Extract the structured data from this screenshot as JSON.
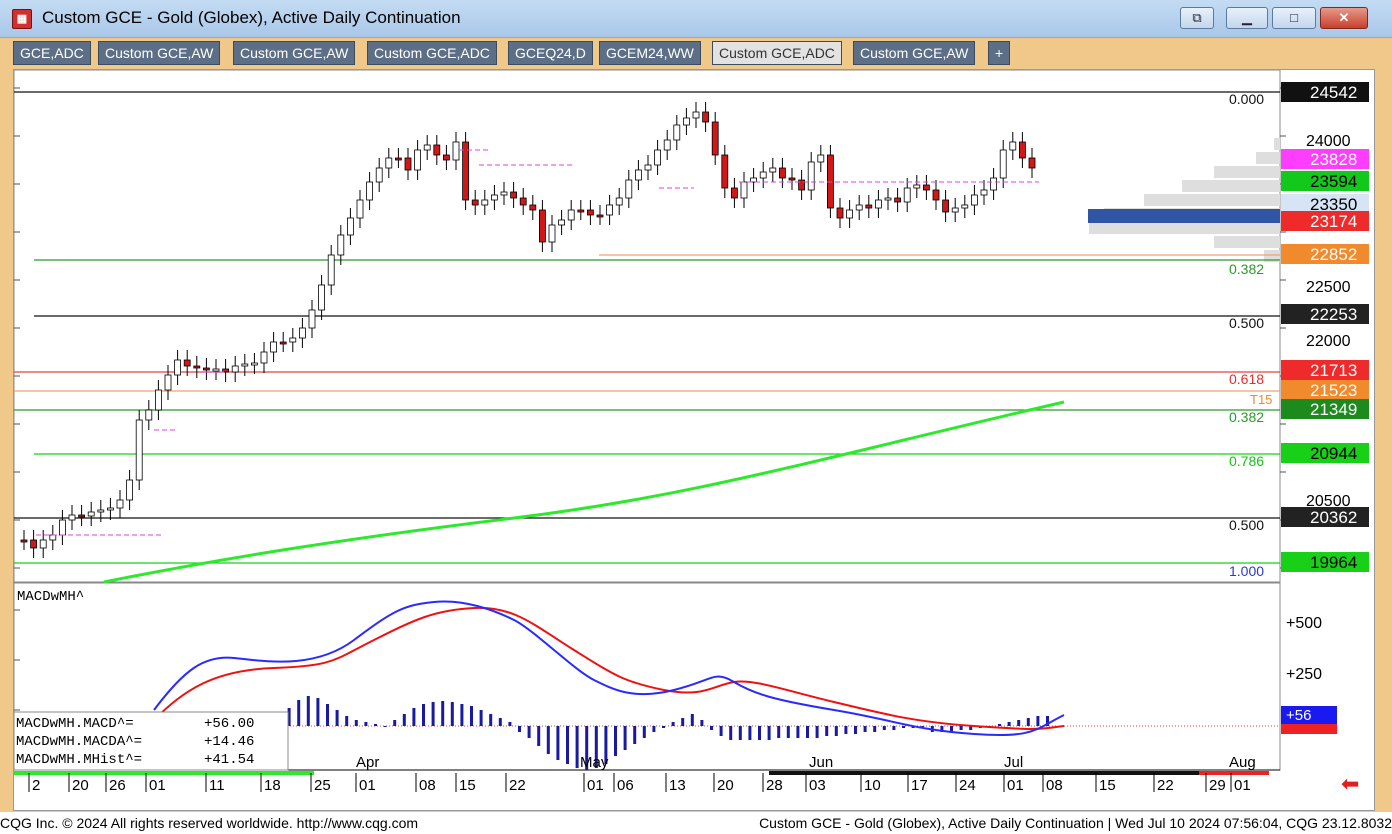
{
  "window": {
    "title": "Custom GCE - Gold (Globex), Active Daily Continuation",
    "app_icon": "cqg-chart-icon",
    "buttons": {
      "restore": "⧉",
      "minimize": "▁",
      "maximize": "□",
      "close": "✕"
    }
  },
  "tabs": [
    {
      "label": "GCE,ADC",
      "active": false
    },
    {
      "label": "Custom GCE,AW",
      "active": false
    },
    {
      "label": "Custom GCE,AW",
      "active": false
    },
    {
      "label": "Custom GCE,ADC",
      "active": false
    },
    {
      "label": "GCEQ24,D",
      "active": false
    },
    {
      "label": "GCEM24,WW",
      "active": false
    },
    {
      "label": "Custom GCE,ADC",
      "active": true
    },
    {
      "label": "Custom GCE,AW",
      "active": false
    },
    {
      "label": "+",
      "active": false
    }
  ],
  "price_scale": {
    "axis_labels": [
      "24000",
      "22500",
      "22000",
      "20500"
    ],
    "tags": [
      {
        "value": "24542",
        "bg": "#111111",
        "fg": "#ffffff"
      },
      {
        "value": "23828",
        "bg": "#ff3dff",
        "fg": "#ffffff"
      },
      {
        "value": "23594",
        "bg": "#12c81b",
        "fg": "#000000"
      },
      {
        "value": "23350",
        "bg": "#d6e4f5",
        "fg": "#000000"
      },
      {
        "value": "23174",
        "bg": "#ee2a2a",
        "fg": "#ffffff"
      },
      {
        "value": "22852",
        "bg": "#f08a2c",
        "fg": "#ffffff"
      },
      {
        "value": "22253",
        "bg": "#222222",
        "fg": "#ffffff"
      },
      {
        "value": "21713",
        "bg": "#ee2a2a",
        "fg": "#ffffff"
      },
      {
        "value": "21523",
        "bg": "#f08a2c",
        "fg": "#ffffff"
      },
      {
        "value": "21349",
        "bg": "#1d8a1d",
        "fg": "#ffffff"
      },
      {
        "value": "20944",
        "bg": "#17d017",
        "fg": "#000000"
      },
      {
        "value": "20362",
        "bg": "#222222",
        "fg": "#ffffff"
      },
      {
        "value": "19964",
        "bg": "#17d017",
        "fg": "#000000"
      }
    ]
  },
  "fib_labels": [
    {
      "text": "0.000",
      "color": "#111111"
    },
    {
      "text": "0.382",
      "color": "#2a9a2a"
    },
    {
      "text": "0.500",
      "color": "#111111"
    },
    {
      "text": "0.618",
      "color": "#e03030"
    },
    {
      "text": "T15",
      "color": "#f08a2c"
    },
    {
      "text": "0.382",
      "color": "#2a9a2a"
    },
    {
      "text": "0.786",
      "color": "#17c017"
    },
    {
      "text": "0.500",
      "color": "#111111"
    },
    {
      "text": "1.000",
      "color": "#2a3ad0"
    }
  ],
  "macd": {
    "title": "MACDwMH^",
    "axis_labels": [
      "+500",
      "+250"
    ],
    "readout": [
      {
        "label": "MACDwMH.MACD^=",
        "value": "+56.00"
      },
      {
        "label": "MACDwMH.MACDA^=",
        "value": "+14.46"
      },
      {
        "label": "MACDwMH.MHist^=",
        "value": "+41.54"
      }
    ],
    "tag_macd": "+56",
    "colors": {
      "macd": "#2a2aff",
      "signal": "#ee1111",
      "hist": "#1a1aa0"
    }
  },
  "time_axis": {
    "months": [
      "Apr",
      "May",
      "Jun",
      "Jul",
      "Aug"
    ],
    "days": [
      "2",
      "20",
      "26",
      "01",
      "11",
      "18",
      "25",
      "01",
      "08",
      "15",
      "22",
      "01",
      "06",
      "13",
      "20",
      "28",
      "03",
      "10",
      "17",
      "24",
      "01",
      "08",
      "15",
      "22",
      "29",
      "01"
    ]
  },
  "status": {
    "left": "CQG Inc. © 2024 All rights reserved worldwide. http://www.cqg.com",
    "right": "Custom GCE - Gold (Globex), Active Daily Continuation | Wed Jul 10 2024 07:56:04, CQG 23.12.8032"
  },
  "colors": {
    "frame": "#f0c98a",
    "ma_line": "#2ee82e",
    "up_candle": "#ffffff",
    "down_candle": "#d01818",
    "volume_profile": "#dddddd",
    "poc_bar": "#2f55a4",
    "scroll_arrow": "#e02020"
  }
}
